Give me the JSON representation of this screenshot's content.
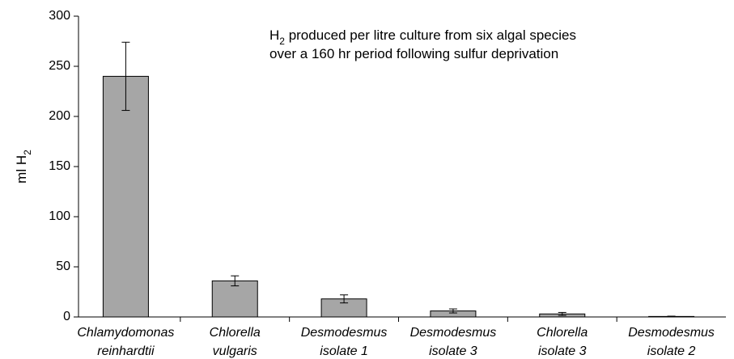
{
  "chart_data": {
    "type": "bar",
    "annotation": [
      [
        "H",
        "2",
        " produced per litre culture from six algal species"
      ],
      [
        "over a 160 hr period following sulfur deprivation"
      ]
    ],
    "ylabel": [
      "ml H",
      "2"
    ],
    "categories": [
      [
        "Chlamydomonas",
        "reinhardtii"
      ],
      [
        "Chlorella",
        "vulgaris"
      ],
      [
        "Desmodesmus",
        "isolate 1"
      ],
      [
        "Desmodesmus",
        "isolate 3"
      ],
      [
        "Chlorella",
        "isolate 3"
      ],
      [
        "Desmodesmus",
        "isolate 2"
      ]
    ],
    "values": [
      240,
      36,
      18,
      6,
      3,
      0.5
    ],
    "errors": [
      34,
      5,
      4,
      2,
      1.5,
      0.3
    ],
    "color": "#a6a6a6",
    "ylim": [
      0,
      300
    ],
    "yticks": [
      0,
      50,
      100,
      150,
      200,
      250,
      300
    ]
  }
}
